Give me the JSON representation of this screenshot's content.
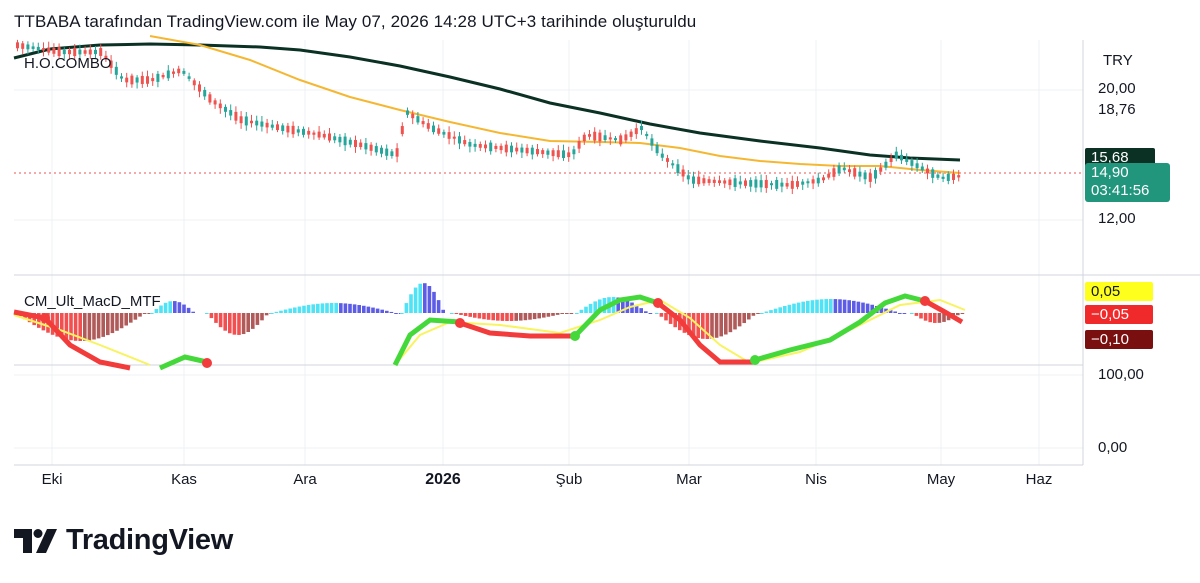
{
  "header": {
    "text": "TTBABA tarafından TradingView.com ile May 07, 2026 14:28 UTC+3 tarihinde oluşturuldu"
  },
  "chart": {
    "symbol": "H.O.COMBO",
    "currency": "TRY",
    "price_axis": [
      "20,00",
      "18,76",
      "12,00"
    ],
    "price_badges": {
      "ma_value": "15,68",
      "last_price": "14,90",
      "countdown": "03:41:56"
    },
    "indicator": {
      "name": "CM_Ult_MacD_MTF",
      "badges": [
        "0,05",
        "−0,05",
        "−0,10"
      ]
    },
    "lower_axis": [
      "100,00",
      "0,00"
    ],
    "time_axis": [
      "Eki",
      "Kas",
      "Ara",
      "2026",
      "Şub",
      "Mar",
      "Nis",
      "May",
      "Haz"
    ]
  },
  "colors": {
    "up": "#26a69a",
    "down": "#ef5350",
    "ma_slow": "#0b3124",
    "ma_fast": "#f5b731",
    "macd_up": "#45d83a",
    "macd_down": "#f23b3b",
    "signal": "#f8f35e",
    "hist_pos_strong": "#4fe3f5",
    "hist_pos_weak": "#5c5ce6",
    "hist_neg_strong": "#f25050",
    "hist_neg_weak": "#b05a5a",
    "badge_price": "#21967d"
  },
  "logo": {
    "text": "TradingView",
    "icon": "tradingview-logo-icon"
  }
}
